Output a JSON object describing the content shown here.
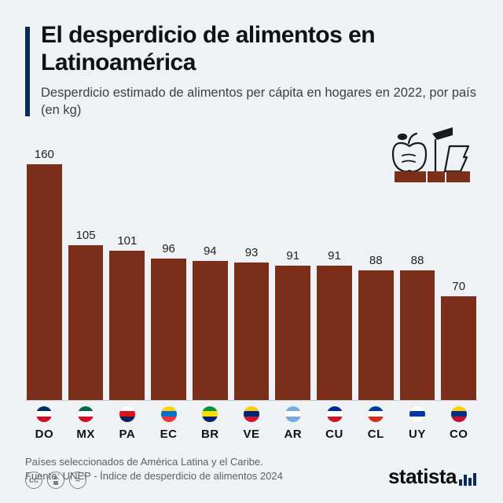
{
  "header": {
    "title": "El desperdicio de alimentos en Latinoamérica",
    "subtitle": "Desperdicio estimado de alimentos per cápita en hogares en 2022, por país (en kg)",
    "accent_color": "#0a2a5c"
  },
  "chart": {
    "type": "bar",
    "bar_color": "#7b2e1a",
    "background_color": "#eef2f5",
    "axis_color": "#c7cdd3",
    "value_fontsize": 15,
    "code_fontsize": 15,
    "ylim": [
      0,
      160
    ],
    "bars": [
      {
        "code": "DO",
        "value": 160,
        "flag_colors": [
          "#002d62",
          "#ffffff",
          "#ce1126"
        ]
      },
      {
        "code": "MX",
        "value": 105,
        "flag_colors": [
          "#006847",
          "#ffffff",
          "#ce1126"
        ]
      },
      {
        "code": "PA",
        "value": 101,
        "flag_colors": [
          "#ffffff",
          "#da121a",
          "#072357"
        ]
      },
      {
        "code": "EC",
        "value": 96,
        "flag_colors": [
          "#ffd100",
          "#0072ce",
          "#ef3340"
        ]
      },
      {
        "code": "BR",
        "value": 94,
        "flag_colors": [
          "#009739",
          "#fedd00",
          "#012169"
        ]
      },
      {
        "code": "VE",
        "value": 93,
        "flag_colors": [
          "#ffcc00",
          "#00247d",
          "#cf142b"
        ]
      },
      {
        "code": "AR",
        "value": 91,
        "flag_colors": [
          "#74acdf",
          "#ffffff",
          "#74acdf"
        ]
      },
      {
        "code": "CU",
        "value": 91,
        "flag_colors": [
          "#002a8f",
          "#ffffff",
          "#cf142b"
        ]
      },
      {
        "code": "CL",
        "value": 88,
        "flag_colors": [
          "#0039a6",
          "#ffffff",
          "#d52b1e"
        ]
      },
      {
        "code": "UY",
        "value": 88,
        "flag_colors": [
          "#ffffff",
          "#0038a8",
          "#ffffff"
        ]
      },
      {
        "code": "CO",
        "value": 70,
        "flag_colors": [
          "#ffcd00",
          "#003087",
          "#c8102e"
        ]
      }
    ]
  },
  "footnotes": {
    "line1": "Países seleccionados de América Latina y el Caribe.",
    "line2": "Fuente: UNEP - Índice de desperdicio de alimentos 2024"
  },
  "footer": {
    "cc_badges": [
      "cc",
      "🄯",
      "="
    ],
    "brand": "statista",
    "brand_color": "#0a2a5c"
  },
  "illustration": {
    "name": "food-waste-icon",
    "stroke": "#1a1a1a",
    "fill": "#7b2e1a"
  }
}
